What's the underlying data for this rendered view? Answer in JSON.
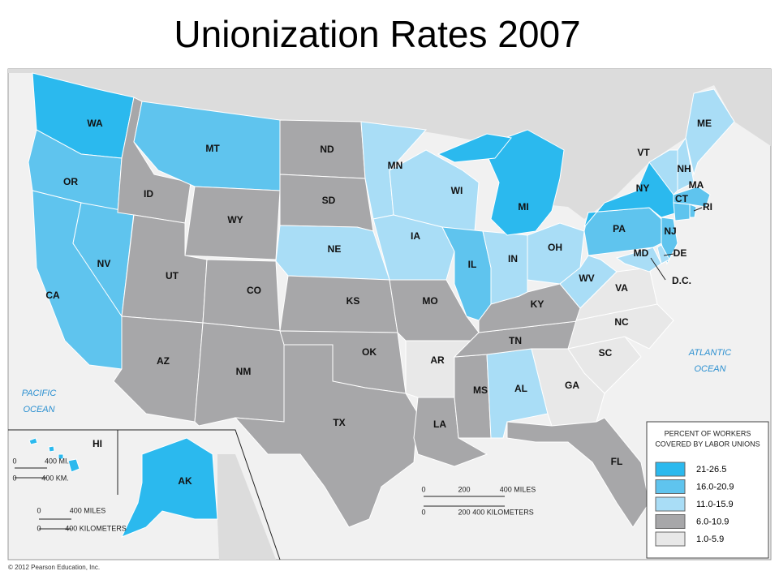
{
  "title": "Unionization Rates 2007",
  "legend": {
    "title_lines": [
      "PERCENT OF WORKERS",
      "COVERED BY LABOR UNIONS"
    ],
    "classes": [
      {
        "label": "21-26.5",
        "color": "#2bb9ee"
      },
      {
        "label": "16.0-20.9",
        "color": "#5fc4ee"
      },
      {
        "label": "11.0-15.9",
        "color": "#a9ddf6"
      },
      {
        "label": "6.0-10.9",
        "color": "#a7a7a9"
      },
      {
        "label": "1.0-5.9",
        "color": "#e8e8e8"
      }
    ]
  },
  "states": [
    {
      "label": "WA",
      "class": 0
    },
    {
      "label": "OR",
      "class": 1
    },
    {
      "label": "CA",
      "class": 1
    },
    {
      "label": "NV",
      "class": 1
    },
    {
      "label": "ID",
      "class": 3
    },
    {
      "label": "MT",
      "class": 1
    },
    {
      "label": "WY",
      "class": 3
    },
    {
      "label": "UT",
      "class": 3
    },
    {
      "label": "CO",
      "class": 3
    },
    {
      "label": "AZ",
      "class": 3
    },
    {
      "label": "NM",
      "class": 3
    },
    {
      "label": "ND",
      "class": 3
    },
    {
      "label": "SD",
      "class": 3
    },
    {
      "label": "NE",
      "class": 2
    },
    {
      "label": "KS",
      "class": 3
    },
    {
      "label": "OK",
      "class": 3
    },
    {
      "label": "TX",
      "class": 3
    },
    {
      "label": "MN",
      "class": 2
    },
    {
      "label": "WI",
      "class": 2
    },
    {
      "label": "IA",
      "class": 2
    },
    {
      "label": "MO",
      "class": 3
    },
    {
      "label": "AR",
      "class": 4
    },
    {
      "label": "LA",
      "class": 3
    },
    {
      "label": "MS",
      "class": 3
    },
    {
      "label": "AL",
      "class": 2
    },
    {
      "label": "TN",
      "class": 3
    },
    {
      "label": "KY",
      "class": 3
    },
    {
      "label": "IL",
      "class": 1
    },
    {
      "label": "IN",
      "class": 2
    },
    {
      "label": "OH",
      "class": 2
    },
    {
      "label": "MI",
      "class": 0
    },
    {
      "label": "WV",
      "class": 2
    },
    {
      "label": "VA",
      "class": 4
    },
    {
      "label": "NC",
      "class": 4
    },
    {
      "label": "SC",
      "class": 4
    },
    {
      "label": "GA",
      "class": 4
    },
    {
      "label": "FL",
      "class": 3
    },
    {
      "label": "PA",
      "class": 1
    },
    {
      "label": "NY",
      "class": 0
    },
    {
      "label": "NJ",
      "class": 1
    },
    {
      "label": "DE",
      "class": 2
    },
    {
      "label": "MD",
      "class": 2
    },
    {
      "label": "VT",
      "class": 2
    },
    {
      "label": "NH",
      "class": 2
    },
    {
      "label": "ME",
      "class": 2
    },
    {
      "label": "MA",
      "class": 1
    },
    {
      "label": "CT",
      "class": 1
    },
    {
      "label": "RI",
      "class": 1
    },
    {
      "label": "AK",
      "class": 0
    },
    {
      "label": "HI",
      "class": 0
    }
  ],
  "dc_label": "D.C.",
  "oceans": [
    [
      "PACIFIC",
      "OCEAN"
    ],
    [
      "ATLANTIC",
      "OCEAN"
    ]
  ],
  "main_scale": [
    "0",
    "200",
    "400 MILES",
    "0",
    "200",
    "400 KILOMETERS"
  ],
  "hawaii_scale": [
    "0",
    "400 MI.",
    "0",
    "400 KM."
  ],
  "alaska_scale": [
    "0",
    "400 MILES",
    "0",
    "400 KILOMETERS"
  ],
  "copyright": "© 2012 Pearson Education, Inc."
}
